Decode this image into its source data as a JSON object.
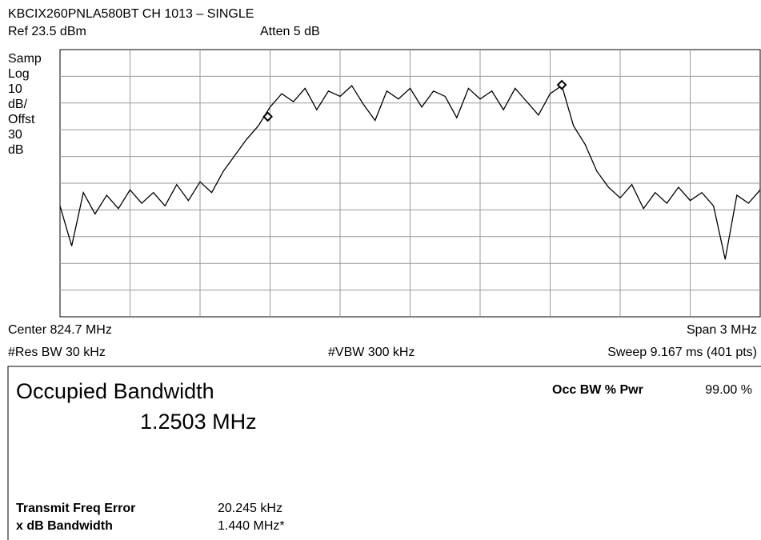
{
  "header": {
    "title": "KBCIX260PNLA580BT CH 1013 – SINGLE",
    "ref": "Ref 23.5 dBm",
    "atten": "Atten 5 dB"
  },
  "scale_labels": [
    "Samp",
    "Log",
    "10",
    "dB/",
    "Offst",
    "30",
    "dB"
  ],
  "footer": {
    "center": "Center 824.7 MHz",
    "span": "Span 3 MHz",
    "res_bw": "#Res BW 30 kHz",
    "vbw": "#VBW 300 kHz",
    "sweep": "Sweep 9.167 ms (401 pts)"
  },
  "results": {
    "title": "Occupied Bandwidth",
    "value": "1.2503 MHz",
    "occ_bw_label": "Occ BW % Pwr",
    "occ_bw_value": "99.00 %",
    "rows": [
      [
        "Transmit Freq Error",
        "20.245 kHz"
      ],
      [
        "x dB Bandwidth",
        "1.440 MHz*"
      ]
    ]
  },
  "chart_data": {
    "type": "line",
    "xlim": [
      823.2,
      826.2
    ],
    "ylim": [
      -76.5,
      23.5
    ],
    "x": [
      823.2,
      823.25,
      823.3,
      823.35,
      823.4,
      823.45,
      823.5,
      823.55,
      823.6,
      823.65,
      823.7,
      823.75,
      823.8,
      823.85,
      823.9,
      823.95,
      824,
      824.05,
      824.1,
      824.15,
      824.2,
      824.25,
      824.3,
      824.35,
      824.4,
      824.45,
      824.5,
      824.55,
      824.6,
      824.65,
      824.7,
      824.75,
      824.8,
      824.85,
      824.9,
      824.95,
      825,
      825.05,
      825.1,
      825.15,
      825.2,
      825.25,
      825.3,
      825.35,
      825.4,
      825.45,
      825.5,
      825.55,
      825.6,
      825.65,
      825.7,
      825.75,
      825.8,
      825.85,
      825.9,
      825.95,
      826,
      826.05,
      826.1,
      826.15,
      826.2
    ],
    "series": [
      {
        "color": "#000000",
        "values": [
          -35,
          -50,
          -30,
          -38,
          -31,
          -36,
          -29,
          -34,
          -30,
          -35,
          -27,
          -33,
          -26,
          -30,
          -22,
          -16,
          -10,
          -5,
          2,
          7,
          4,
          9,
          1,
          8,
          6,
          10,
          3,
          -3,
          8,
          5,
          9,
          2,
          8,
          6,
          -2,
          9,
          5,
          8,
          1,
          9,
          4,
          -1,
          7,
          10,
          -5,
          -12,
          -22,
          -28,
          -32,
          -27,
          -36,
          -30,
          -34,
          -28,
          -33,
          -30,
          -35,
          -55,
          -31,
          -34,
          -29
        ]
      }
    ],
    "markers": {
      "x": [
        824.09,
        825.35
      ],
      "values": [
        -1.6,
        10.3
      ]
    }
  }
}
